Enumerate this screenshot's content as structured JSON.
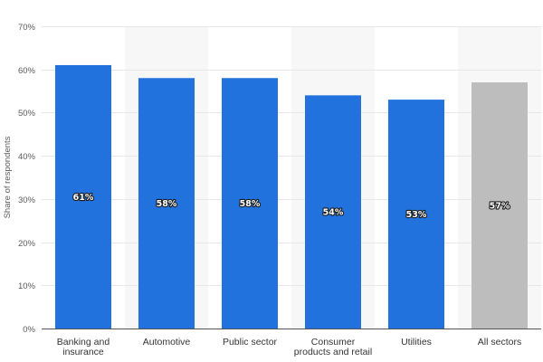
{
  "chart_data": {
    "type": "bar",
    "categories": [
      [
        "Banking and",
        "insurance"
      ],
      [
        "Automotive"
      ],
      [
        "Public sector"
      ],
      [
        "Consumer",
        "products and retail"
      ],
      [
        "Utilities"
      ],
      [
        "All sectors"
      ]
    ],
    "values": [
      61,
      58,
      58,
      54,
      53,
      57
    ],
    "value_labels": [
      "61%",
      "58%",
      "58%",
      "54%",
      "53%",
      "57%"
    ],
    "bar_colors": [
      "#2272dd",
      "#2272dd",
      "#2272dd",
      "#2272dd",
      "#2272dd",
      "#bdbdbd"
    ],
    "ylabel": "Share of respondents",
    "xlabel": "",
    "ylim": [
      0,
      70
    ],
    "y_ticks": [
      0,
      10,
      20,
      30,
      40,
      50,
      60,
      70
    ],
    "y_tick_labels": [
      "0%",
      "10%",
      "20%",
      "30%",
      "40%",
      "50%",
      "60%",
      "70%"
    ],
    "grid": true,
    "alternating_column_shading": true,
    "colors": {
      "bar_primary": "#2272dd",
      "bar_total": "#bdbdbd",
      "grid": "#e6e6e6",
      "band": "#f7f7f7",
      "axis": "#555555"
    }
  }
}
